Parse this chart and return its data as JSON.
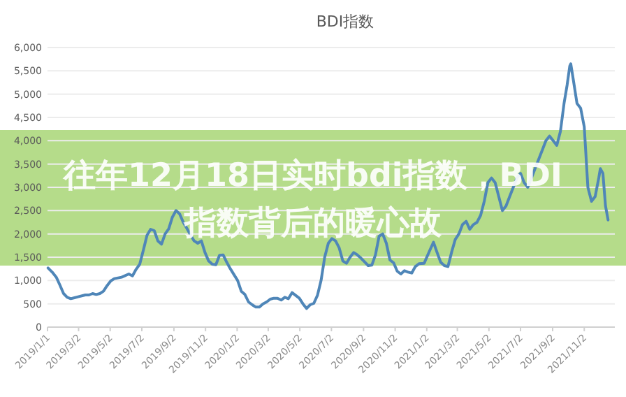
{
  "chart_data": {
    "type": "line",
    "title": "BDI指数",
    "annotations": [
      "往年12月18日实时bdi指数，BDI指数背后的暖心故"
    ],
    "x": [
      "2019-01-02",
      "2019-01-10",
      "2019-01-18",
      "2019-01-25",
      "2019-02-01",
      "2019-02-08",
      "2019-02-15",
      "2019-02-22",
      "2019-03-01",
      "2019-03-15",
      "2019-03-22",
      "2019-03-29",
      "2019-04-05",
      "2019-04-12",
      "2019-04-19",
      "2019-04-26",
      "2019-05-03",
      "2019-05-10",
      "2019-05-24",
      "2019-06-07",
      "2019-06-14",
      "2019-06-21",
      "2019-06-28",
      "2019-07-05",
      "2019-07-12",
      "2019-07-19",
      "2019-07-26",
      "2019-08-02",
      "2019-08-09",
      "2019-08-16",
      "2019-08-23",
      "2019-08-30",
      "2019-09-06",
      "2019-09-13",
      "2019-09-20",
      "2019-09-27",
      "2019-10-04",
      "2019-10-11",
      "2019-10-18",
      "2019-10-25",
      "2019-11-01",
      "2019-11-08",
      "2019-11-15",
      "2019-11-22",
      "2019-11-29",
      "2019-12-06",
      "2019-12-13",
      "2019-12-20",
      "2020-01-03",
      "2020-01-10",
      "2020-01-17",
      "2020-01-24",
      "2020-01-31",
      "2020-02-07",
      "2020-02-14",
      "2020-02-21",
      "2020-02-28",
      "2020-03-06",
      "2020-03-13",
      "2020-03-20",
      "2020-03-27",
      "2020-04-03",
      "2020-04-10",
      "2020-04-17",
      "2020-04-24",
      "2020-05-01",
      "2020-05-08",
      "2020-05-15",
      "2020-05-22",
      "2020-05-29",
      "2020-06-05",
      "2020-06-12",
      "2020-06-19",
      "2020-06-26",
      "2020-07-03",
      "2020-07-10",
      "2020-07-17",
      "2020-07-24",
      "2020-07-31",
      "2020-08-07",
      "2020-08-14",
      "2020-08-21",
      "2020-08-28",
      "2020-09-04",
      "2020-09-11",
      "2020-09-18",
      "2020-09-25",
      "2020-10-02",
      "2020-10-09",
      "2020-10-16",
      "2020-10-23",
      "2020-10-30",
      "2020-11-06",
      "2020-11-13",
      "2020-11-20",
      "2020-11-27",
      "2020-12-04",
      "2020-12-11",
      "2020-12-18",
      "2020-12-28",
      "2021-01-08",
      "2021-01-15",
      "2021-01-22",
      "2021-01-29",
      "2021-02-05",
      "2021-02-12",
      "2021-02-19",
      "2021-02-26",
      "2021-03-05",
      "2021-03-12",
      "2021-03-19",
      "2021-03-26",
      "2021-04-02",
      "2021-04-09",
      "2021-04-16",
      "2021-04-23",
      "2021-04-30",
      "2021-05-07",
      "2021-05-14",
      "2021-05-21",
      "2021-05-28",
      "2021-06-04",
      "2021-06-11",
      "2021-06-18",
      "2021-06-25",
      "2021-07-02",
      "2021-07-09",
      "2021-07-16",
      "2021-07-23",
      "2021-07-30",
      "2021-08-06",
      "2021-08-13",
      "2021-08-20",
      "2021-08-27",
      "2021-09-03",
      "2021-09-10",
      "2021-09-17",
      "2021-09-24",
      "2021-09-30",
      "2021-10-05",
      "2021-10-07",
      "2021-10-12",
      "2021-10-19",
      "2021-10-26",
      "2021-11-02",
      "2021-11-09",
      "2021-11-16",
      "2021-11-23",
      "2021-11-30",
      "2021-12-03",
      "2021-12-08",
      "2021-12-13",
      "2021-12-18"
    ],
    "series": [
      {
        "color": "#4f86b8",
        "values": [
          1270,
          1180,
          1070,
          900,
          720,
          640,
          610,
          630,
          650,
          690,
          690,
          720,
          700,
          720,
          770,
          890,
          990,
          1040,
          1070,
          1140,
          1100,
          1240,
          1350,
          1650,
          1970,
          2100,
          2070,
          1850,
          1780,
          2000,
          2110,
          2360,
          2500,
          2430,
          2250,
          2120,
          1980,
          1850,
          1800,
          1850,
          1600,
          1420,
          1350,
          1340,
          1540,
          1550,
          1390,
          1250,
          1000,
          770,
          700,
          540,
          480,
          430,
          430,
          500,
          540,
          600,
          620,
          620,
          580,
          640,
          610,
          740,
          680,
          620,
          500,
          400,
          480,
          510,
          680,
          1000,
          1500,
          1800,
          1900,
          1850,
          1700,
          1420,
          1370,
          1500,
          1600,
          1550,
          1480,
          1400,
          1320,
          1330,
          1550,
          1950,
          2000,
          1800,
          1440,
          1380,
          1200,
          1140,
          1210,
          1180,
          1160,
          1300,
          1360,
          1370,
          1650,
          1820,
          1600,
          1390,
          1320,
          1300,
          1610,
          1880,
          2000,
          2200,
          2270,
          2100,
          2200,
          2250,
          2400,
          2700,
          3100,
          3200,
          3100,
          2800,
          2500,
          2600,
          2800,
          3000,
          3200,
          3300,
          3100,
          3000,
          3200,
          3400,
          3600,
          3800,
          4000,
          4100,
          4000,
          3900,
          4200,
          4800,
          5200,
          5600,
          5650,
          5300,
          4800,
          4700,
          4300,
          3000,
          2700,
          2800,
          3200,
          3400,
          3300,
          2600,
          2300
        ]
      }
    ],
    "xlim": [
      "2019-01-01",
      "2021-12-31"
    ],
    "xticks": [
      {
        "value": "2019-01-01",
        "label": "2019/1/1"
      },
      {
        "value": "2019-03-02",
        "label": "2019/3/2"
      },
      {
        "value": "2019-05-02",
        "label": "2019/5/2"
      },
      {
        "value": "2019-07-02",
        "label": "2019/7/2"
      },
      {
        "value": "2019-09-02",
        "label": "2019/9/2"
      },
      {
        "value": "2019-11-02",
        "label": "2019/11/2"
      },
      {
        "value": "2020-01-02",
        "label": "2020/1/2"
      },
      {
        "value": "2020-03-02",
        "label": "2020/3/2"
      },
      {
        "value": "2020-05-02",
        "label": "2020/5/2"
      },
      {
        "value": "2020-07-02",
        "label": "2020/7/2"
      },
      {
        "value": "2020-09-02",
        "label": "2020/9/2"
      },
      {
        "value": "2020-11-02",
        "label": "2020/11/2"
      },
      {
        "value": "2021-01-02",
        "label": "2021/1/2"
      },
      {
        "value": "2021-03-02",
        "label": "2021/3/2"
      },
      {
        "value": "2021-05-02",
        "label": "2021/5/2"
      },
      {
        "value": "2021-07-02",
        "label": "2021/7/2"
      },
      {
        "value": "2021-09-02",
        "label": "2021/9/2"
      },
      {
        "value": "2021-11-02",
        "label": "2021/11/2"
      }
    ],
    "ylim": [
      0,
      6000
    ],
    "yticks": [
      0,
      500,
      {
        "value": 1000,
        "label": "1,000"
      },
      {
        "value": 1500,
        "label": "1,500"
      },
      {
        "value": 2000,
        "label": "2,000"
      },
      {
        "value": 2500,
        "label": "2,500"
      },
      {
        "value": 3000,
        "label": "3,000"
      },
      {
        "value": 3500,
        "label": "3,500"
      },
      {
        "value": 4000,
        "label": "4,000"
      },
      {
        "value": 4500,
        "label": "4,500"
      },
      {
        "value": 5000,
        "label": "5,000"
      },
      {
        "value": 5500,
        "label": "5,500"
      },
      {
        "value": 6000,
        "label": "6,000"
      }
    ],
    "grid": "y",
    "marker": "none",
    "line_style": "solid"
  }
}
